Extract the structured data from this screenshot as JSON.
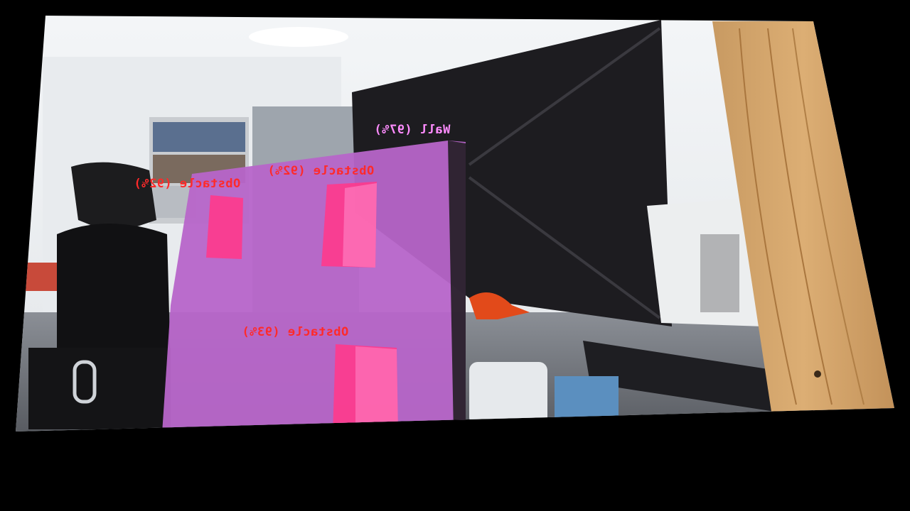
{
  "frame": {
    "mirrored": true,
    "colors": {
      "obstacle_label": "#ff2a2a",
      "obstacle_overlay": "#ff3a8c",
      "wall_label": "#ff8cff",
      "wall_overlay": "#b765c9",
      "letterbox": "#000000"
    }
  },
  "detections": [
    {
      "id": "wall",
      "class": "wall",
      "label": "Wall (97%)"
    },
    {
      "id": "obstacle-1",
      "class": "obstacle",
      "label": "Obstacle (92%)"
    },
    {
      "id": "obstacle-2",
      "class": "obstacle",
      "label": "Obstacle (92%)"
    },
    {
      "id": "obstacle-3",
      "class": "obstacle",
      "label": "Obstacle (93%)"
    }
  ]
}
